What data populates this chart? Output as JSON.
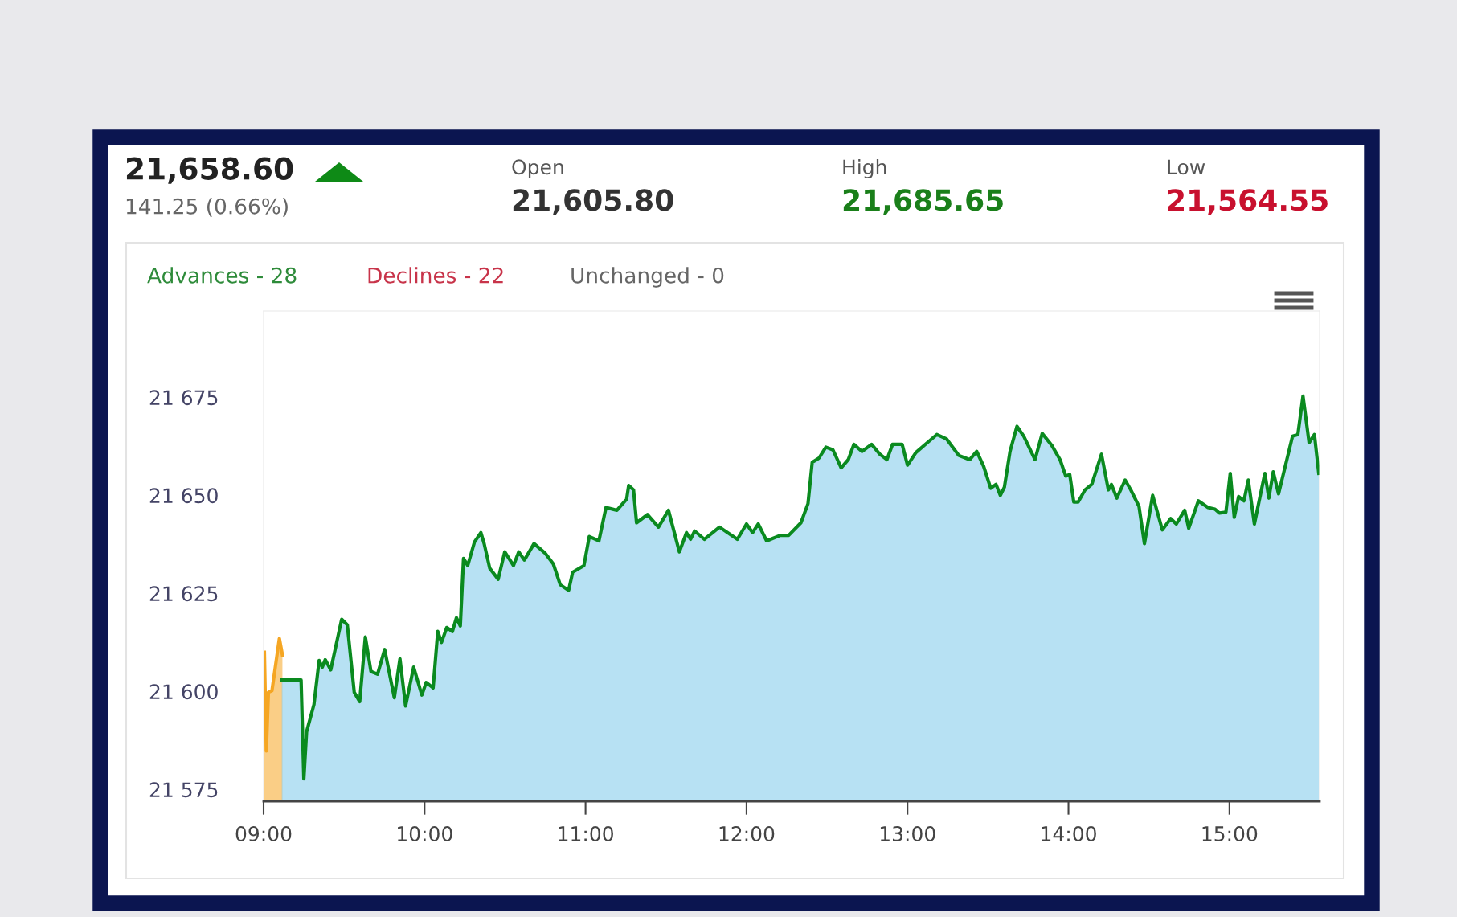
{
  "chart_data": {
    "type": "area",
    "title": "21,658.60",
    "subtitle": "141.25 (0.66%)",
    "annotations": [
      "Open",
      "21,605.80",
      "High",
      "21,685.65",
      "Low",
      "21,564.55",
      "Advances - 28",
      "Declines - 22",
      "Unchanged - 0"
    ],
    "xlim": [
      9,
      15.56
    ],
    "ylim": [
      21572,
      21697
    ],
    "xticks": [
      {
        "value": 9,
        "label": "09:00"
      },
      {
        "value": 10,
        "label": "10:00"
      },
      {
        "value": 11,
        "label": "11:00"
      },
      {
        "value": 12,
        "label": "12:00"
      },
      {
        "value": 13,
        "label": "13:00"
      },
      {
        "value": 14,
        "label": "14:00"
      },
      {
        "value": 15,
        "label": "15:00"
      }
    ],
    "yticks": [
      {
        "value": 21575,
        "label": "21 575"
      },
      {
        "value": 21600,
        "label": "21 600"
      },
      {
        "value": 21625,
        "label": "21 625"
      },
      {
        "value": 21650,
        "label": "21 650"
      },
      {
        "value": 21675,
        "label": "21 675"
      }
    ],
    "grid": false,
    "legend": false,
    "series": [
      {
        "color": "#f5a623",
        "x": [
          9.005,
          9.017,
          9.03,
          9.052,
          9.098,
          9.117
        ],
        "values": [
          21610.0,
          21584.8,
          21599.8,
          21600.2,
          21613.5,
          21609.3
        ]
      },
      {
        "color": "#0a8a1f",
        "x": [
          9.113,
          9.233,
          9.25,
          9.267,
          9.313,
          9.345,
          9.365,
          9.383,
          9.417,
          9.485,
          9.52,
          9.563,
          9.597,
          9.632,
          9.667,
          9.708,
          9.752,
          9.812,
          9.847,
          9.882,
          9.932,
          9.983,
          10.01,
          10.053,
          10.082,
          10.105,
          10.138,
          10.173,
          10.198,
          10.222,
          10.242,
          10.268,
          10.31,
          10.35,
          10.37,
          10.405,
          10.457,
          10.498,
          10.552,
          10.585,
          10.62,
          10.68,
          10.748,
          10.8,
          10.843,
          10.895,
          10.92,
          10.99,
          11.023,
          11.083,
          11.127,
          11.195,
          11.255,
          11.268,
          11.298,
          11.317,
          11.385,
          11.453,
          11.515,
          11.583,
          11.627,
          11.652,
          11.678,
          11.738,
          11.832,
          11.943,
          12.0,
          12.038,
          12.073,
          12.125,
          12.21,
          12.262,
          12.338,
          12.382,
          12.408,
          12.45,
          12.493,
          12.537,
          12.588,
          12.632,
          12.667,
          12.717,
          12.777,
          12.828,
          12.872,
          12.907,
          12.967,
          13.0,
          13.052,
          13.122,
          13.182,
          13.242,
          13.318,
          13.387,
          13.43,
          13.473,
          13.517,
          13.55,
          13.577,
          13.602,
          13.637,
          13.68,
          13.722,
          13.792,
          13.837,
          13.897,
          13.948,
          13.983,
          14.008,
          14.033,
          14.06,
          14.103,
          14.145,
          14.205,
          14.248,
          14.267,
          14.3,
          14.352,
          14.387,
          14.438,
          14.472,
          14.523,
          14.583,
          14.635,
          14.67,
          14.722,
          14.747,
          14.807,
          14.867,
          14.91,
          14.937,
          14.978,
          15.005,
          15.03,
          15.057,
          15.09,
          15.117,
          15.155,
          15.22,
          15.245,
          15.272,
          15.305,
          15.392,
          15.425,
          15.457,
          15.495,
          15.528,
          15.555
        ],
        "values": [
          21602.9,
          21602.9,
          21577.7,
          21589.7,
          21596.7,
          21607.9,
          21606.2,
          21608.1,
          21605.5,
          21618.4,
          21617.0,
          21599.8,
          21597.4,
          21613.9,
          21605.1,
          21604.4,
          21610.7,
          21598.4,
          21608.3,
          21596.3,
          21606.2,
          21599.1,
          21602.3,
          21600.9,
          21615.3,
          21612.5,
          21616.3,
          21615.3,
          21618.8,
          21616.7,
          21633.9,
          21632.1,
          21638.1,
          21640.5,
          21637.7,
          21631.4,
          21628.6,
          21635.6,
          21632.1,
          21635.6,
          21633.5,
          21637.7,
          21635.3,
          21632.5,
          21627.2,
          21625.8,
          21630.4,
          21632.1,
          21639.5,
          21638.4,
          21646.9,
          21646.2,
          21649.0,
          21652.5,
          21651.4,
          21643.0,
          21645.1,
          21641.9,
          21646.2,
          21635.6,
          21640.5,
          21638.8,
          21640.9,
          21638.8,
          21641.9,
          21638.8,
          21642.7,
          21640.5,
          21642.7,
          21638.4,
          21639.8,
          21639.8,
          21643.0,
          21647.9,
          21658.4,
          21659.5,
          21662.3,
          21661.6,
          21657.0,
          21659.1,
          21663.0,
          21661.2,
          21663.0,
          21660.5,
          21659.1,
          21663.0,
          21663.0,
          21657.7,
          21660.9,
          21663.4,
          21665.5,
          21664.4,
          21660.2,
          21659.1,
          21661.2,
          21657.4,
          21651.8,
          21652.8,
          21650.0,
          21652.1,
          21661.2,
          21667.6,
          21665.1,
          21659.1,
          21665.8,
          21662.7,
          21659.1,
          21654.9,
          21655.3,
          21648.3,
          21648.3,
          21651.4,
          21652.8,
          21660.5,
          21651.4,
          21652.8,
          21649.3,
          21653.9,
          21651.4,
          21647.2,
          21637.7,
          21650.0,
          21641.2,
          21644.1,
          21642.7,
          21646.2,
          21641.6,
          21648.6,
          21646.9,
          21646.5,
          21645.5,
          21645.7,
          21655.6,
          21644.4,
          21649.7,
          21648.6,
          21653.9,
          21642.7,
          21655.6,
          21649.3,
          21656.0,
          21650.4,
          21665.1,
          21665.5,
          21675.3,
          21663.4,
          21665.5,
          21655.6
        ]
      }
    ]
  }
}
